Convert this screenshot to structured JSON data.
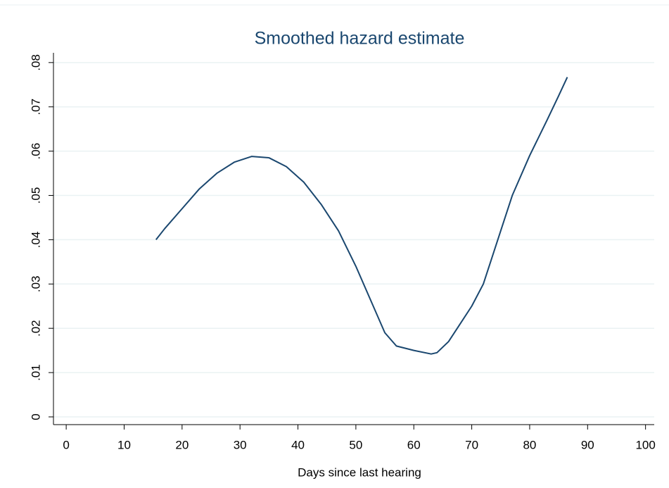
{
  "chart_data": {
    "type": "line",
    "title": "Smoothed hazard estimate",
    "x_label": "Days since last hearing",
    "x": [
      15.5,
      17,
      20,
      23,
      26,
      29,
      32,
      35,
      38,
      41,
      44,
      47,
      50,
      53,
      55,
      57,
      60,
      63,
      64,
      66,
      68,
      70,
      72,
      73,
      75,
      77,
      80,
      83,
      85,
      86.5
    ],
    "series": [
      {
        "color": "#1a476f",
        "values": [
          0.04,
          0.0425,
          0.047,
          0.0515,
          0.055,
          0.0575,
          0.0588,
          0.0585,
          0.0565,
          0.053,
          0.048,
          0.042,
          0.034,
          0.025,
          0.019,
          0.016,
          0.015,
          0.0142,
          0.0145,
          0.017,
          0.021,
          0.025,
          0.03,
          0.034,
          0.042,
          0.05,
          0.059,
          0.067,
          0.0725,
          0.0767
        ]
      }
    ],
    "xlim": [
      -2.2,
      101.5
    ],
    "xticks": [
      0,
      10,
      20,
      30,
      40,
      50,
      60,
      70,
      80,
      90,
      100
    ],
    "ylim": [
      -0.00175,
      0.0822
    ],
    "yticks": [
      0,
      {
        "value": 0.01,
        "label": ".01"
      },
      {
        "value": 0.02,
        "label": ".02"
      },
      {
        "value": 0.03,
        "label": ".03"
      },
      {
        "value": 0.04,
        "label": ".04"
      },
      {
        "value": 0.05,
        "label": ".05"
      },
      {
        "value": 0.06,
        "label": ".06"
      },
      {
        "value": 0.07,
        "label": ".07"
      },
      {
        "value": 0.08,
        "label": ".08"
      }
    ],
    "grid": true
  }
}
